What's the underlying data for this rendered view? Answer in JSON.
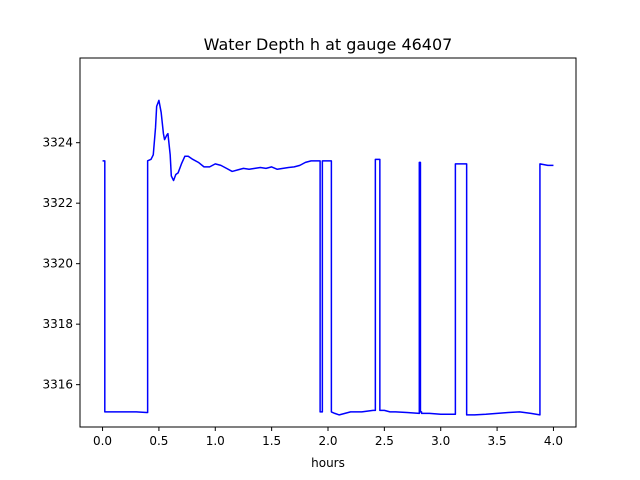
{
  "chart_data": {
    "type": "line",
    "title": "Water Depth h at gauge 46407",
    "xlabel": "hours",
    "ylabel": "",
    "xlim": [
      -0.2,
      4.2
    ],
    "ylim": [
      3314.6,
      3326.8
    ],
    "grid": false,
    "xticks": [
      0.0,
      0.5,
      1.0,
      1.5,
      2.0,
      2.5,
      3.0,
      3.5,
      4.0
    ],
    "xtick_labels": [
      "0.0",
      "0.5",
      "1.0",
      "1.5",
      "2.0",
      "2.5",
      "3.0",
      "3.5",
      "4.0"
    ],
    "yticks": [
      3316,
      3318,
      3320,
      3322,
      3324
    ],
    "ytick_labels": [
      "3316",
      "3318",
      "3320",
      "3322",
      "3324"
    ],
    "series": [
      {
        "name": "",
        "color": "#0000ff",
        "x": [
          0.0,
          0.02,
          0.02,
          0.1,
          0.2,
          0.3,
          0.39,
          0.4,
          0.4,
          0.43,
          0.45,
          0.47,
          0.48,
          0.5,
          0.52,
          0.54,
          0.55,
          0.57,
          0.58,
          0.6,
          0.61,
          0.63,
          0.65,
          0.67,
          0.7,
          0.73,
          0.76,
          0.8,
          0.85,
          0.9,
          0.95,
          1.0,
          1.05,
          1.1,
          1.15,
          1.2,
          1.25,
          1.3,
          1.35,
          1.4,
          1.45,
          1.5,
          1.55,
          1.6,
          1.65,
          1.7,
          1.75,
          1.8,
          1.85,
          1.9,
          1.93,
          1.93,
          1.95,
          1.95,
          1.97,
          1.97,
          2.03,
          2.03,
          2.06,
          2.1,
          2.15,
          2.2,
          2.3,
          2.4,
          2.42,
          2.42,
          2.46,
          2.46,
          2.5,
          2.55,
          2.6,
          2.7,
          2.81,
          2.81,
          2.82,
          2.82,
          2.83,
          2.83,
          2.9,
          3.0,
          3.13,
          3.13,
          3.2,
          3.23,
          3.23,
          3.3,
          3.4,
          3.5,
          3.6,
          3.7,
          3.8,
          3.88,
          3.88,
          3.95,
          4.0
        ],
        "y": [
          3323.4,
          3323.4,
          3315.1,
          3315.1,
          3315.1,
          3315.1,
          3315.08,
          3315.08,
          3323.4,
          3323.45,
          3323.6,
          3324.5,
          3325.2,
          3325.4,
          3325.0,
          3324.3,
          3324.1,
          3324.25,
          3324.3,
          3323.6,
          3322.9,
          3322.75,
          3322.95,
          3323.0,
          3323.3,
          3323.55,
          3323.55,
          3323.45,
          3323.35,
          3323.2,
          3323.2,
          3323.3,
          3323.25,
          3323.15,
          3323.05,
          3323.1,
          3323.15,
          3323.12,
          3323.15,
          3323.18,
          3323.15,
          3323.2,
          3323.12,
          3323.15,
          3323.18,
          3323.2,
          3323.25,
          3323.35,
          3323.4,
          3323.4,
          3323.4,
          3315.1,
          3315.1,
          3323.4,
          3323.4,
          3323.4,
          3323.4,
          3315.1,
          3315.05,
          3315.0,
          3315.05,
          3315.1,
          3315.1,
          3315.15,
          3315.15,
          3323.45,
          3323.45,
          3315.15,
          3315.15,
          3315.1,
          3315.1,
          3315.08,
          3315.05,
          3323.35,
          3323.35,
          3315.1,
          3315.1,
          3315.05,
          3315.05,
          3315.02,
          3315.02,
          3323.3,
          3323.3,
          3323.3,
          3315.0,
          3315.0,
          3315.02,
          3315.05,
          3315.08,
          3315.1,
          3315.05,
          3315.0,
          3323.3,
          3323.25,
          3323.25
        ]
      }
    ]
  }
}
